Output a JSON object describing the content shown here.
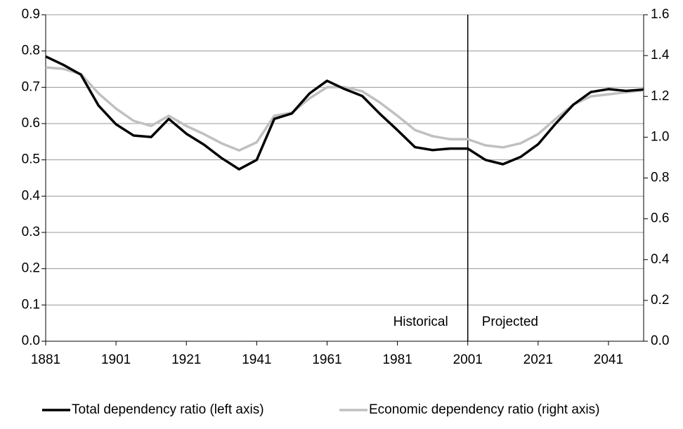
{
  "chart_data": {
    "type": "line",
    "x": [
      1881,
      1886,
      1891,
      1896,
      1901,
      1906,
      1911,
      1916,
      1921,
      1926,
      1931,
      1936,
      1941,
      1946,
      1951,
      1956,
      1961,
      1966,
      1971,
      1976,
      1981,
      1986,
      1991,
      1996,
      2001,
      2006,
      2011,
      2016,
      2021,
      2026,
      2031,
      2036,
      2041,
      2046,
      2051
    ],
    "series": [
      {
        "name": "Total dependency ratio (left axis)",
        "color": "#000000",
        "values": [
          0.785,
          0.762,
          0.735,
          0.65,
          0.598,
          0.567,
          0.563,
          0.613,
          0.572,
          0.542,
          0.505,
          0.474,
          0.5,
          0.613,
          0.628,
          0.683,
          0.718,
          0.695,
          0.676,
          0.627,
          0.582,
          0.535,
          0.527,
          0.531,
          0.531,
          0.5,
          0.488,
          0.508,
          0.543,
          0.6,
          0.652,
          0.687,
          0.695,
          0.69,
          0.694
        ]
      },
      {
        "name": "Economic dependency ratio (right axis)",
        "color": "#c0c0c0",
        "axis": "y2",
        "values": [
          1.342,
          1.335,
          1.31,
          1.215,
          1.14,
          1.08,
          1.055,
          1.105,
          1.055,
          1.015,
          0.97,
          0.935,
          0.975,
          1.105,
          1.12,
          1.19,
          1.245,
          1.245,
          1.225,
          1.17,
          1.105,
          1.035,
          1.005,
          0.99,
          0.99,
          0.96,
          0.95,
          0.97,
          1.015,
          1.09,
          1.16,
          1.2,
          1.21,
          1.22,
          1.23
        ]
      }
    ],
    "xlim": [
      1881,
      2051
    ],
    "xticks": [
      1881,
      1901,
      1921,
      1941,
      1961,
      1981,
      2001,
      2021,
      2041
    ],
    "ylim": [
      0,
      0.9
    ],
    "yticks": [
      {
        "value": 0,
        "label": "0.0"
      },
      0.1,
      0.2,
      0.3,
      0.4,
      0.5,
      0.6,
      0.7,
      0.8,
      0.9
    ],
    "y2lim": [
      0,
      1.6
    ],
    "y2ticks": [
      {
        "value": 0,
        "label": "0.0"
      },
      0.2,
      0.4,
      0.6,
      0.8,
      {
        "value": 1,
        "label": "1.0"
      },
      1.2,
      1.4,
      1.6
    ],
    "grid": true,
    "divider": 2001,
    "annotations": [
      "Historical",
      "Projected"
    ],
    "legend": "bottom"
  }
}
